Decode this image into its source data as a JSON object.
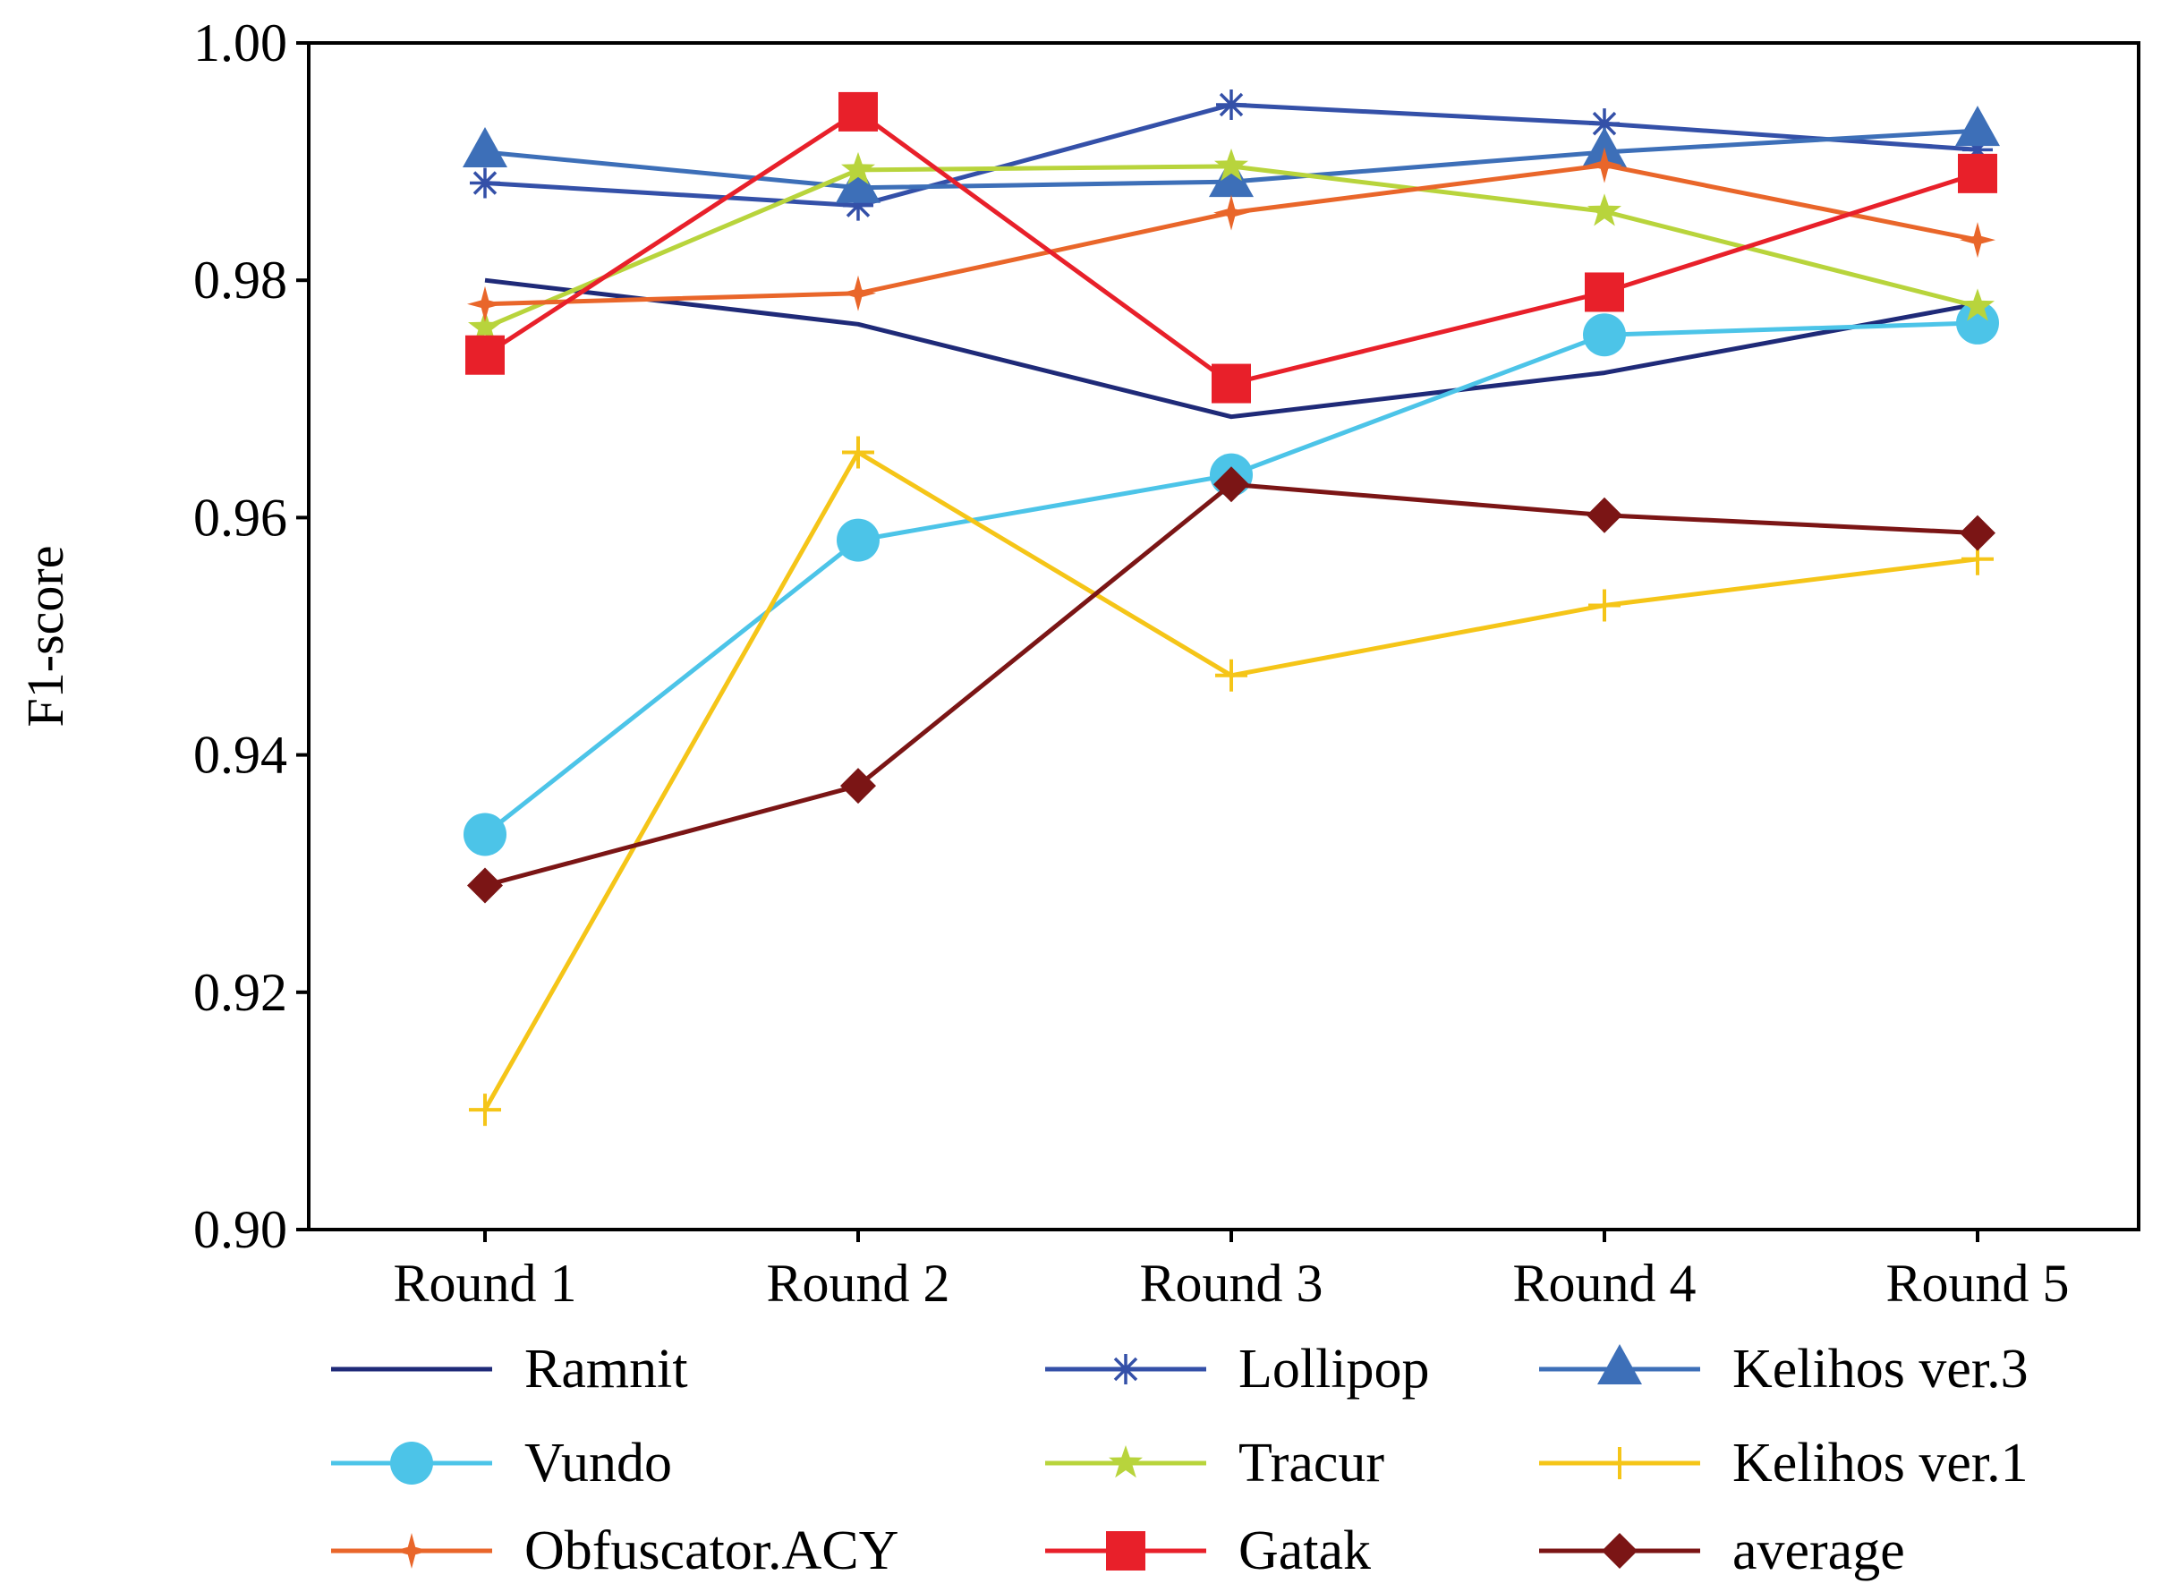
{
  "chart_data": {
    "type": "line",
    "title": "",
    "xlabel": "",
    "ylabel": "F1-score",
    "categories": [
      "Round 1",
      "Round 2",
      "Round 3",
      "Round 4",
      "Round 5"
    ],
    "ylim": [
      0.9,
      1.0
    ],
    "yticks": [
      "0.90",
      "0.92",
      "0.94",
      "0.96",
      "0.98",
      "1.00"
    ],
    "grid": false,
    "legend_position": "bottom",
    "series": [
      {
        "name": "Ramnit",
        "color": "#1f2a78",
        "marker": "none",
        "values": [
          0.98,
          0.9763,
          0.9685,
          0.9722,
          0.978
        ]
      },
      {
        "name": "Lollipop",
        "color": "#3450a8",
        "marker": "asterisk",
        "values": [
          0.9882,
          0.9863,
          0.9948,
          0.9932,
          0.991
        ]
      },
      {
        "name": "Kelihos ver.3",
        "color": "#3d6fb8",
        "marker": "triangle",
        "values": [
          0.9908,
          0.9878,
          0.9883,
          0.9908,
          0.9926
        ]
      },
      {
        "name": "Vundo",
        "color": "#4cc4e8",
        "marker": "circle",
        "values": [
          0.9333,
          0.9581,
          0.9636,
          0.9754,
          0.9764
        ]
      },
      {
        "name": "Tracur",
        "color": "#b8d43c",
        "marker": "star",
        "values": [
          0.976,
          0.9893,
          0.9896,
          0.9858,
          0.9778
        ]
      },
      {
        "name": "Kelihos ver.1",
        "color": "#f5c518",
        "marker": "plus",
        "values": [
          0.9101,
          0.9655,
          0.9467,
          0.9526,
          0.9565
        ]
      },
      {
        "name": "Obfuscator.ACY",
        "color": "#e9662a",
        "marker": "star4",
        "values": [
          0.978,
          0.9789,
          0.9857,
          0.9897,
          0.9834
        ]
      },
      {
        "name": "Gatak",
        "color": "#e8202a",
        "marker": "square",
        "values": [
          0.9737,
          0.9942,
          0.9713,
          0.979,
          0.989
        ]
      },
      {
        "name": "average",
        "color": "#7b1515",
        "marker": "diamond",
        "values": [
          0.929,
          0.9374,
          0.9628,
          0.9602,
          0.9587
        ]
      }
    ],
    "legend_order": [
      "Ramnit",
      "Lollipop",
      "Kelihos ver.3",
      "Vundo",
      "Tracur",
      "Kelihos ver.1",
      "Obfuscator.ACY",
      "Gatak",
      "average"
    ]
  }
}
